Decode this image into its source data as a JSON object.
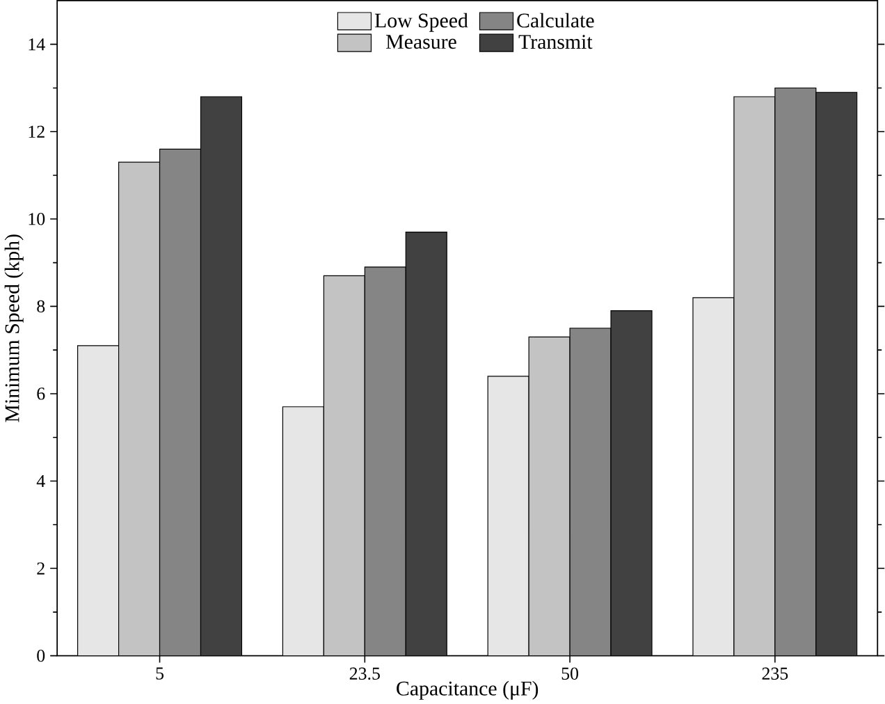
{
  "chart_data": {
    "type": "bar",
    "xlabel": "Capacitance (μF)",
    "ylabel": "Minimum Speed (kph)",
    "categories": [
      "5",
      "23.5",
      "50",
      "235"
    ],
    "series": [
      {
        "name": "Low Speed",
        "color": "#e6e6e6",
        "values": [
          7.1,
          5.7,
          6.4,
          8.2
        ]
      },
      {
        "name": "Measure",
        "color": "#c3c3c3",
        "values": [
          11.3,
          8.7,
          7.3,
          12.8
        ]
      },
      {
        "name": "Calculate",
        "color": "#858585",
        "values": [
          11.6,
          8.9,
          7.5,
          13.0
        ]
      },
      {
        "name": "Transmit",
        "color": "#414141",
        "values": [
          12.8,
          9.7,
          7.9,
          12.9
        ]
      }
    ],
    "ylim": [
      0,
      15
    ],
    "yticks": [
      0,
      2,
      4,
      6,
      8,
      10,
      12,
      14
    ],
    "grid": false,
    "legend": "top"
  }
}
